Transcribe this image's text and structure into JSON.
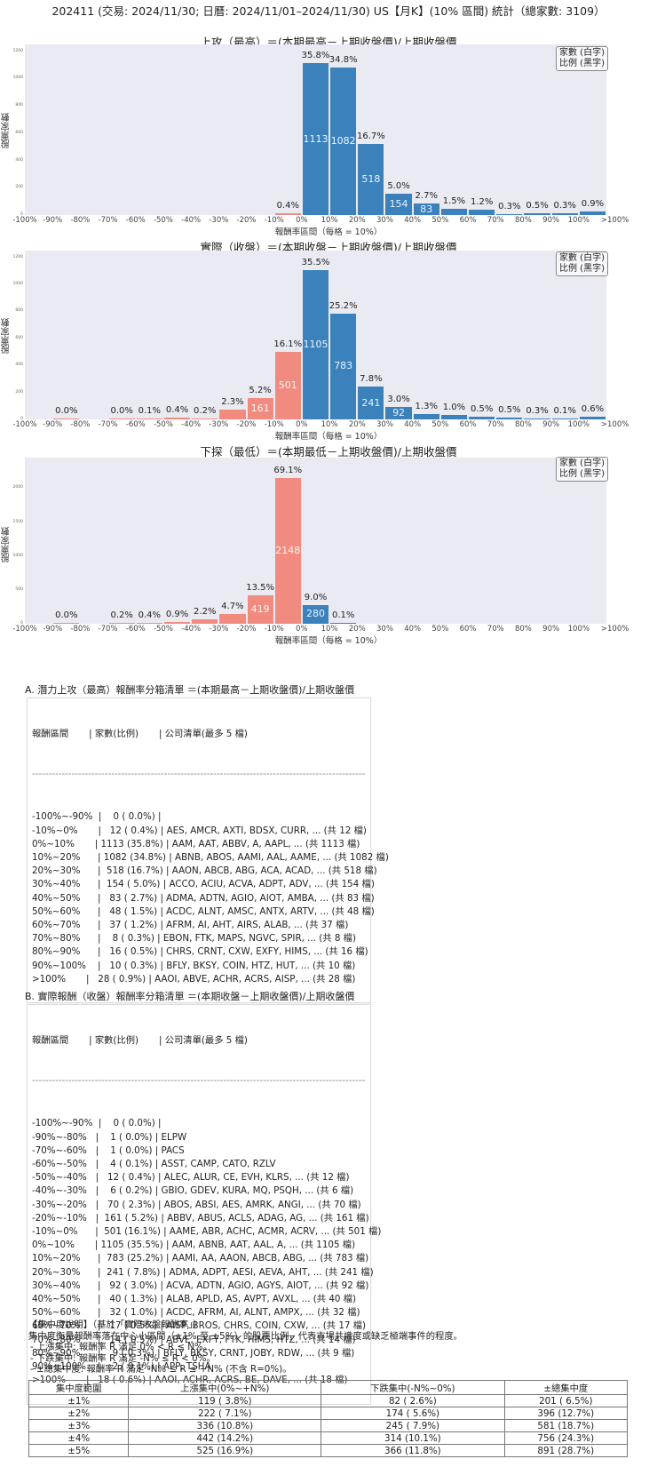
{
  "header": {
    "title": "202411 (交易: 2024/11/30; 日曆: 2024/11/01–2024/11/30) US【月K】(10% 區間) 統計（總家數: 3109）"
  },
  "legend": {
    "line1": "家數 (白字)",
    "line2": "比例 (黑字)"
  },
  "axis": {
    "ylabel": "股票家數",
    "xlabel": "報酬率區間（每格 = 10%）"
  },
  "colors": {
    "negative": "#f28b7f",
    "positive": "#3b82bd",
    "plot_bg": "#eaeaf2"
  },
  "chart_data": [
    {
      "type": "bar",
      "title": "上攻（最高）＝(本期最高－上期收盤價)/上期收盤價",
      "xlabel": "報酬率區間（每格 = 10%）",
      "ylabel": "股票家數",
      "ylim": [
        0,
        1250
      ],
      "yticks": [
        0,
        200,
        400,
        600,
        800,
        1000,
        1200
      ],
      "categories": [
        "-100%~-90%",
        "-90%~-80%",
        "-80%~-70%",
        "-70%~-60%",
        "-60%~-50%",
        "-50%~-40%",
        "-40%~-30%",
        "-30%~-20%",
        "-20%~-10%",
        "-10%~0%",
        "0%~10%",
        "10%~20%",
        "20%~30%",
        "30%~40%",
        "40%~50%",
        "50%~60%",
        "60%~70%",
        "70%~80%",
        "80%~90%",
        "90%~100%",
        ">100%"
      ],
      "xticks": [
        "-100%",
        "-90%",
        "-80%",
        "-70%",
        "-60%",
        "-50%",
        "-40%",
        "-30%",
        "-20%",
        "-10%",
        "0%",
        "10%",
        "20%",
        "30%",
        "40%",
        "50%",
        "60%",
        "70%",
        "80%",
        "90%",
        "100%",
        ">100%"
      ],
      "values": [
        0,
        0,
        0,
        0,
        0,
        0,
        0,
        0,
        0,
        12,
        1113,
        1082,
        518,
        154,
        83,
        48,
        37,
        8,
        16,
        10,
        28
      ],
      "percent_labels": [
        "",
        "",
        "",
        "",
        "",
        "",
        "",
        "",
        "",
        "0.4%",
        "35.8%",
        "34.8%",
        "16.7%",
        "5.0%",
        "2.7%",
        "1.5%",
        "1.2%",
        "0.3%",
        "0.5%",
        "0.3%",
        "0.9%"
      ],
      "grid": false,
      "legend_position": "upper right"
    },
    {
      "type": "bar",
      "title": "實際（收盤）＝(本期收盤－上期收盤價)/上期收盤價",
      "xlabel": "報酬率區間（每格 = 10%）",
      "ylabel": "股票家數",
      "ylim": [
        0,
        1250
      ],
      "yticks": [
        0,
        200,
        400,
        600,
        800,
        1000,
        1200
      ],
      "categories": [
        "-100%~-90%",
        "-90%~-80%",
        "-80%~-70%",
        "-70%~-60%",
        "-60%~-50%",
        "-50%~-40%",
        "-40%~-30%",
        "-30%~-20%",
        "-20%~-10%",
        "-10%~0%",
        "0%~10%",
        "10%~20%",
        "20%~30%",
        "30%~40%",
        "40%~50%",
        "50%~60%",
        "60%~70%",
        "70%~80%",
        "80%~90%",
        "90%~100%",
        ">100%"
      ],
      "xticks": [
        "-100%",
        "-90%",
        "-80%",
        "-70%",
        "-60%",
        "-50%",
        "-40%",
        "-30%",
        "-20%",
        "-10%",
        "0%",
        "10%",
        "20%",
        "30%",
        "40%",
        "50%",
        "60%",
        "70%",
        "80%",
        "90%",
        "100%",
        ">100%"
      ],
      "values": [
        0,
        1,
        0,
        1,
        4,
        12,
        6,
        70,
        161,
        501,
        1105,
        783,
        241,
        92,
        40,
        32,
        17,
        14,
        9,
        2,
        18
      ],
      "percent_labels": [
        "",
        "0.0%",
        "",
        "0.0%",
        "0.1%",
        "0.4%",
        "0.2%",
        "2.3%",
        "5.2%",
        "16.1%",
        "35.5%",
        "25.2%",
        "7.8%",
        "3.0%",
        "1.3%",
        "1.0%",
        "0.5%",
        "0.5%",
        "0.3%",
        "0.1%",
        "0.6%"
      ],
      "grid": false,
      "legend_position": "upper right"
    },
    {
      "type": "bar",
      "title": "下探（最低）＝(本期最低－上期收盤價)/上期收盤價",
      "xlabel": "報酬率區間（每格 = 10%）",
      "ylabel": "股票家數",
      "ylim": [
        0,
        2450
      ],
      "yticks": [
        0,
        500,
        1000,
        1500,
        2000
      ],
      "categories": [
        "-100%~-90%",
        "-90%~-80%",
        "-80%~-70%",
        "-70%~-60%",
        "-60%~-50%",
        "-50%~-40%",
        "-40%~-30%",
        "-30%~-20%",
        "-20%~-10%",
        "-10%~0%",
        "0%~10%",
        "10%~20%",
        "20%~30%",
        "30%~40%",
        "40%~50%",
        "50%~60%",
        "60%~70%",
        "70%~80%",
        "80%~90%",
        "90%~100%",
        ">100%"
      ],
      "xticks": [
        "-100%",
        "-90%",
        "-80%",
        "-70%",
        "-60%",
        "-50%",
        "-40%",
        "-30%",
        "-20%",
        "-10%",
        "0%",
        "10%",
        "20%",
        "30%",
        "40%",
        "50%",
        "60%",
        "70%",
        "80%",
        "90%",
        "100%",
        ">100%"
      ],
      "values": [
        0,
        1,
        0,
        6,
        13,
        27,
        67,
        146,
        419,
        2148,
        280,
        2,
        0,
        0,
        0,
        0,
        0,
        0,
        0,
        0,
        0
      ],
      "percent_labels": [
        "",
        "0.0%",
        "",
        "0.2%",
        "0.4%",
        "0.9%",
        "2.2%",
        "4.7%",
        "13.5%",
        "69.1%",
        "9.0%",
        "0.1%",
        "",
        "",
        "",
        "",
        "",
        "",
        "",
        "",
        ""
      ],
      "grid": false,
      "legend_position": "upper right"
    }
  ],
  "section_a": {
    "title": "A. 潛力上攻（最高）報酬率分箱清單 ＝(本期最高－上期收盤價)/上期收盤價",
    "header": "報酬區間       | 家數(比例)       | 公司清單(最多 5 檔)",
    "separator": "------------------------------------------------------------------------------------------------------------------------------------",
    "rows": [
      "-100%~-90%  |    0 ( 0.0%) |",
      "-10%~0%       |   12 ( 0.4%) | AES, AMCR, AXTI, BDSX, CURR, ... (共 12 檔)",
      "0%~10%       | 1113 (35.8%) | AAM, AAT, ABBV, A, AAPL, ... (共 1113 檔)",
      "10%~20%      | 1082 (34.8%) | ABNB, ABOS, AAMI, AAL, AAME, ... (共 1082 檔)",
      "20%~30%      |  518 (16.7%) | AAON, ABCB, ABG, ACA, ACAD, ... (共 518 檔)",
      "30%~40%      |  154 ( 5.0%) | ACCO, ACIU, ACVA, ADPT, ADV, ... (共 154 檔)",
      "40%~50%      |   83 ( 2.7%) | ADMA, ADTN, AGIO, AIOT, AMBA, ... (共 83 檔)",
      "50%~60%      |   48 ( 1.5%) | ACDC, ALNT, AMSC, ANTX, ARTV, ... (共 48 檔)",
      "60%~70%      |   37 ( 1.2%) | AFRM, AI, AHT, AIRS, ALAB, ... (共 37 檔)",
      "70%~80%      |    8 ( 0.3%) | EBON, FTK, MAPS, NGVC, SPIR, ... (共 8 檔)",
      "80%~90%      |   16 ( 0.5%) | CHRS, CRNT, CXW, EXFY, HIMS, ... (共 16 檔)",
      "90%~100%    |   10 ( 0.3%) | BFLY, BKSY, COIN, HTZ, HUT, ... (共 10 檔)",
      ">100%       |   28 ( 0.9%) | AAOI, ABVE, ACHR, ACRS, AISP, ... (共 28 檔)"
    ]
  },
  "section_b": {
    "title": "B. 實際報酬（收盤）報酬率分箱清單 ＝(本期收盤－上期收盤價)/上期收盤價",
    "header": "報酬區間       | 家數(比例)       | 公司清單(最多 5 檔)",
    "separator": "------------------------------------------------------------------------------------------------------------------------------------",
    "rows": [
      "-100%~-90%  |    0 ( 0.0%) |",
      "-90%~-80%   |    1 ( 0.0%) | ELPW",
      "-70%~-60%   |    1 ( 0.0%) | PACS",
      "-60%~-50%   |    4 ( 0.1%) | ASST, CAMP, CATO, RZLV",
      "-50%~-40%   |   12 ( 0.4%) | ALEC, ALUR, CE, EVH, KLRS, ... (共 12 檔)",
      "-40%~-30%   |    6 ( 0.2%) | GBIO, GDEV, KURA, MQ, PSQH, ... (共 6 檔)",
      "-30%~-20%   |   70 ( 2.3%) | ABOS, ABSI, AES, AMRK, ANGI, ... (共 70 檔)",
      "-20%~-10%   |  161 ( 5.2%) | ABBV, ABUS, ACLS, ADAG, AG, ... (共 161 檔)",
      "-10%~0%      |  501 (16.1%) | AAME, ABR, ACHC, ACMR, ACRV, ... (共 501 檔)",
      "0%~10%       | 1105 (35.5%) | AAM, ABNB, AAT, AAL, A, ... (共 1105 檔)",
      "10%~20%      |  783 (25.2%) | AAMI, AA, AAON, ABCB, ABG, ... (共 783 檔)",
      "20%~30%      |  241 ( 7.8%) | ADMA, ADPT, AESI, AEVA, AHT, ... (共 241 檔)",
      "30%~40%      |   92 ( 3.0%) | ACVA, ADTN, AGIO, AGYS, AIOT, ... (共 92 檔)",
      "40%~50%      |   40 ( 1.3%) | ALAB, APLD, AS, AVPT, AVXL, ... (共 40 檔)",
      "50%~60%      |   32 ( 1.0%) | ACDC, AFRM, AI, ALNT, AMPX, ... (共 32 檔)",
      "60%~70%      |   17 ( 0.5%) | AISP, BROS, CHRS, COIN, CXW, ... (共 17 檔)",
      "70%~80%      |   14 ( 0.5%) | ABVE, EXFY, FTK, HIMS, HTZ, ... (共 14 檔)",
      "80%~90%      |    9 ( 0.3%) | BFLY, BKSY, CRNT, JOBY, RDW, ... (共 9 檔)",
      "90%~100%    |    2 ( 0.1%) | APP, TSHA",
      ">100%       |   18 ( 0.6%) | AAOI, ACHR, ACRS, BE, DAVE, ... (共 18 檔)"
    ]
  },
  "concentration": {
    "title": "【集中度說明】（基於「實際收盤報酬率」）",
    "desc": "集中度衡量報酬率落在中心小區間（±1% 至 ±5%）的股票比例，代表市場共識度或缺乏極端事件的程度。",
    "bullets": [
      "- 上漲集中: 報酬率 R 滿足 0% < R ≤ N%。",
      "- 下跌集中: 報酬率 R 滿足 -N% ≤ R < 0%。",
      "- ±總集中度: 報酬率 R 滿足 -N% ≤ R ≤ +N% (不含 R=0%)。"
    ],
    "columns": [
      "集中度範圍",
      "上漲集中(0%~+N%)",
      "下跌集中(-N%~0%)",
      "±總集中度"
    ],
    "rows": [
      [
        "±1%",
        "119 ( 3.8%)",
        "82 ( 2.6%)",
        "201 ( 6.5%)"
      ],
      [
        "±2%",
        "222 ( 7.1%)",
        "174 ( 5.6%)",
        "396 (12.7%)"
      ],
      [
        "±3%",
        "336 (10.8%)",
        "245 ( 7.9%)",
        "581 (18.7%)"
      ],
      [
        "±4%",
        "442 (14.2%)",
        "314 (10.1%)",
        "756 (24.3%)"
      ],
      [
        "±5%",
        "525 (16.9%)",
        "366 (11.8%)",
        "891 (28.7%)"
      ]
    ]
  }
}
